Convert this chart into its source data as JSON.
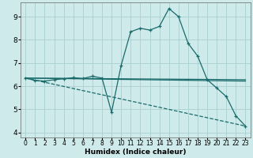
{
  "xlabel": "Humidex (Indice chaleur)",
  "background_color": "#ceeaea",
  "grid_color": "#aacfcf",
  "line_color": "#1a6b6b",
  "xlim": [
    -0.5,
    23.5
  ],
  "ylim": [
    3.8,
    9.6
  ],
  "yticks": [
    4,
    5,
    6,
    7,
    8,
    9
  ],
  "xticks": [
    0,
    1,
    2,
    3,
    4,
    5,
    6,
    7,
    8,
    9,
    10,
    11,
    12,
    13,
    14,
    15,
    16,
    17,
    18,
    19,
    20,
    21,
    22,
    23
  ],
  "series1_x": [
    0,
    1,
    2,
    3,
    4,
    5,
    6,
    7,
    8,
    9,
    10,
    11,
    12,
    13,
    14,
    15,
    16,
    17,
    18,
    19,
    20,
    21,
    22,
    23
  ],
  "series1_y": [
    6.35,
    6.25,
    6.22,
    6.28,
    6.32,
    6.37,
    6.33,
    6.43,
    6.35,
    4.88,
    6.9,
    8.35,
    8.5,
    8.42,
    8.58,
    9.35,
    9.0,
    7.85,
    7.3,
    6.28,
    5.92,
    5.55,
    4.72,
    4.28
  ],
  "line1_x": [
    0,
    23
  ],
  "line1_y": [
    6.35,
    6.28
  ],
  "line2_x": [
    0,
    23
  ],
  "line2_y": [
    6.35,
    6.22
  ],
  "line3_x": [
    0,
    23
  ],
  "line3_y": [
    6.35,
    4.28
  ]
}
